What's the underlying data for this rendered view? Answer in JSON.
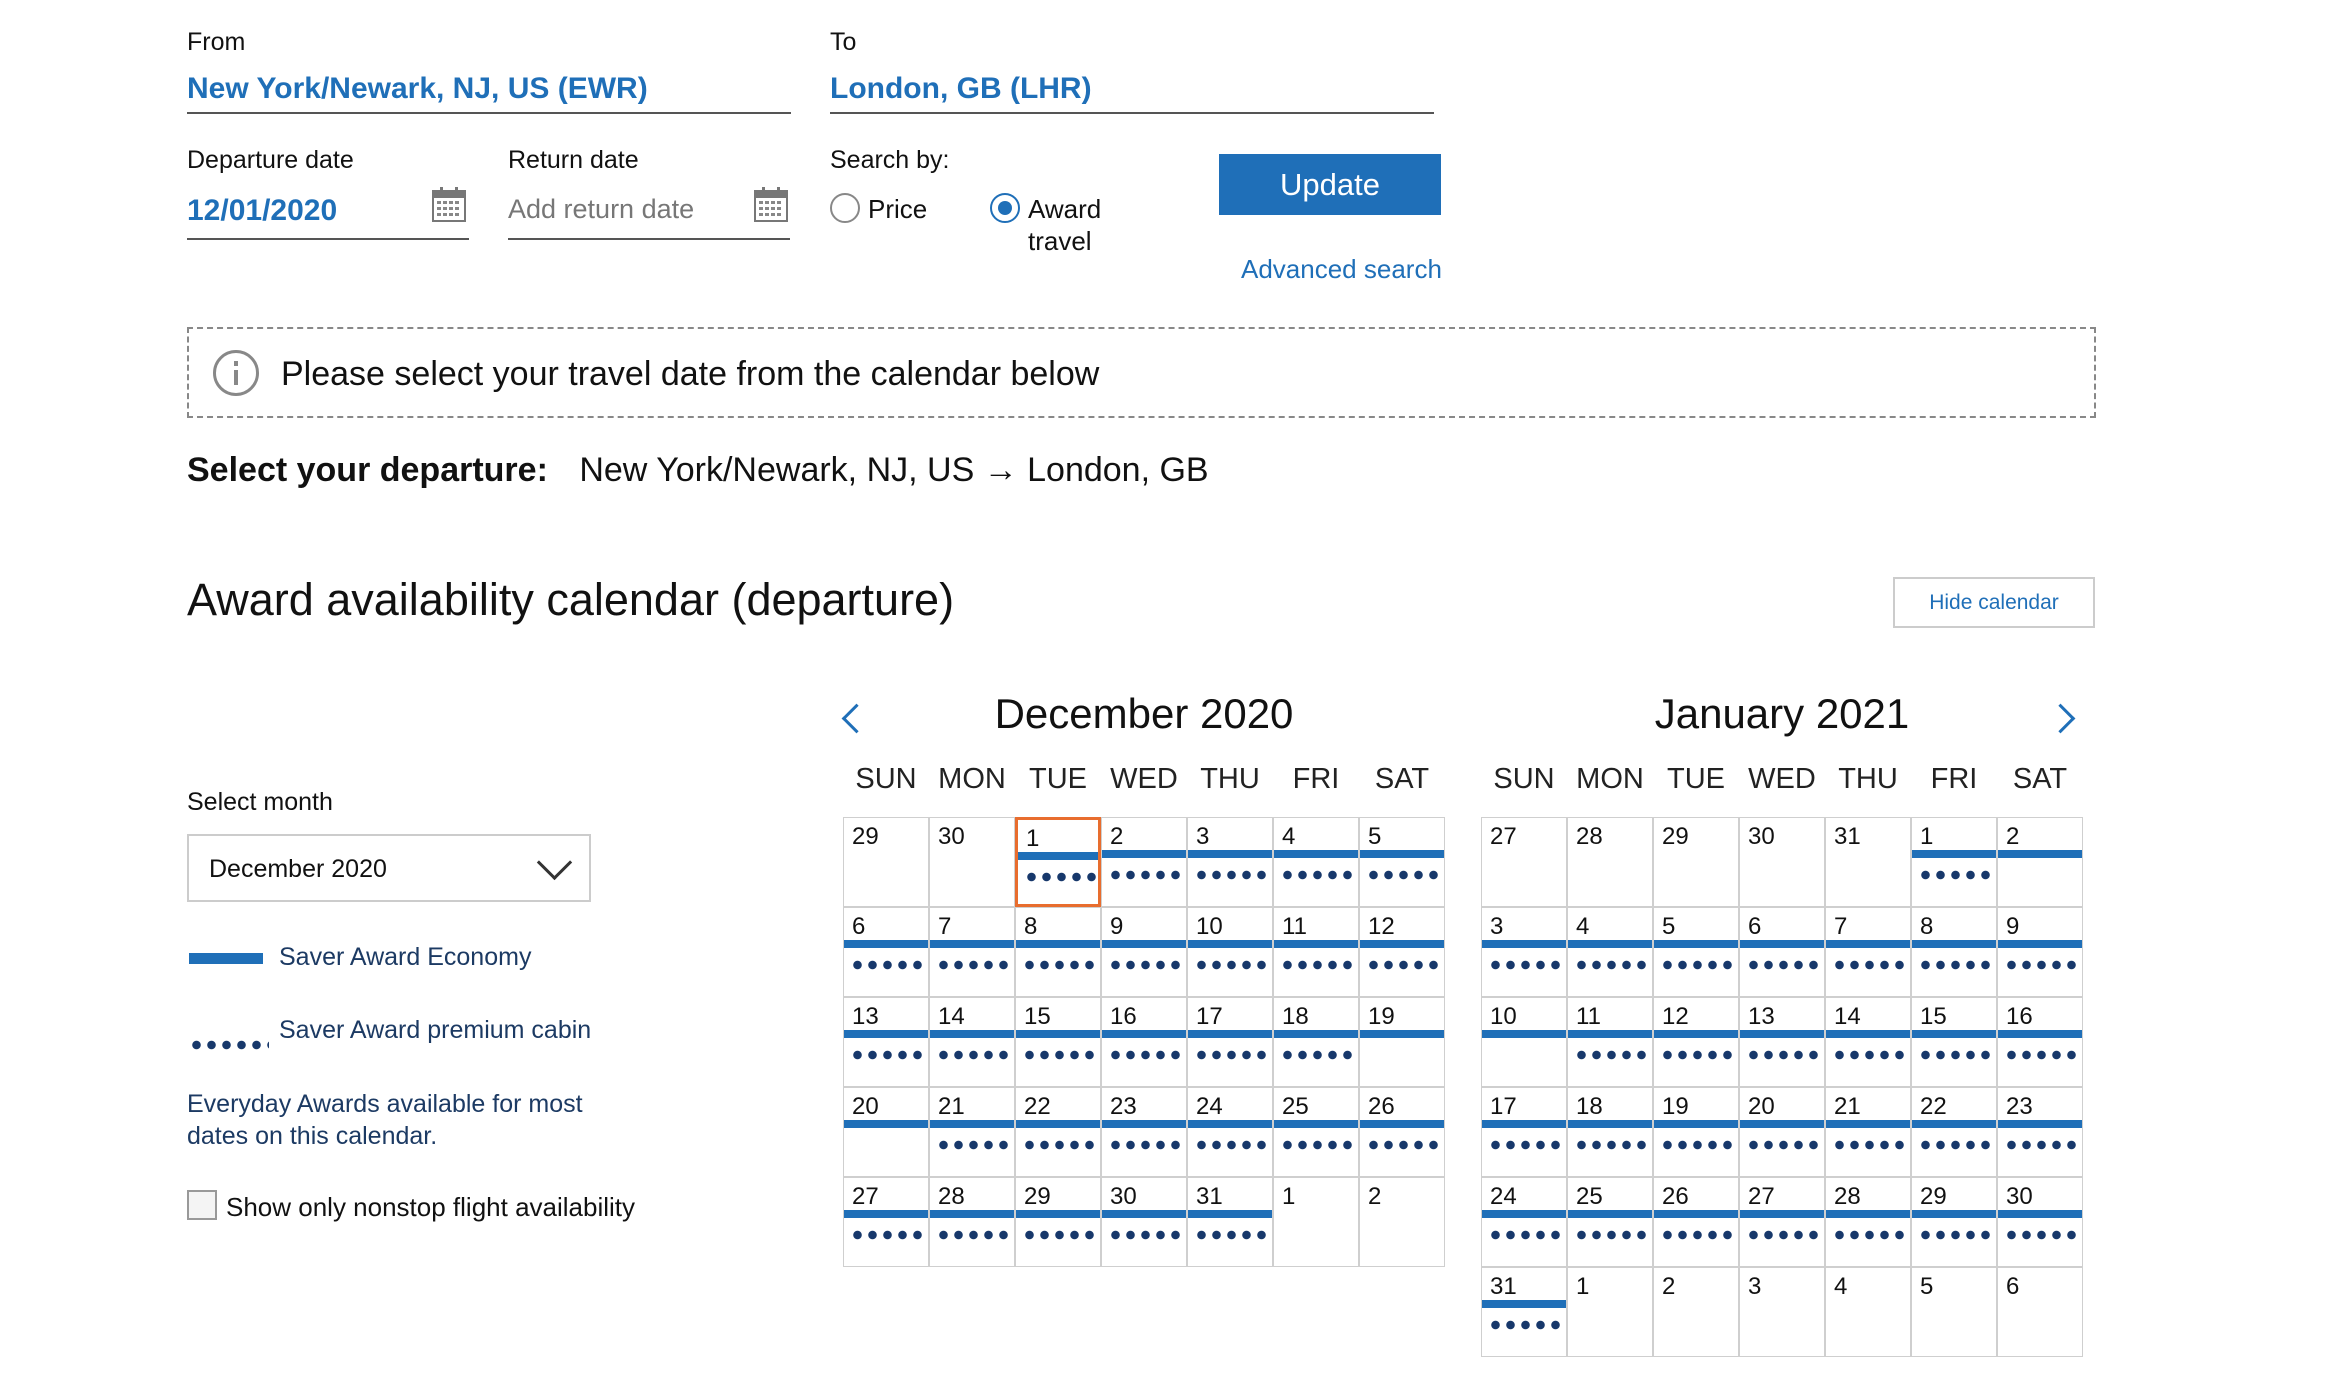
{
  "search": {
    "from_label": "From",
    "from_value": "New York/Newark, NJ, US (EWR)",
    "to_label": "To",
    "to_value": "London, GB (LHR)",
    "departure_label": "Departure date",
    "departure_value": "12/01/2020",
    "return_label": "Return date",
    "return_placeholder": "Add return date",
    "search_by_label": "Search by:",
    "option_price": "Price",
    "option_award_line1": "Award",
    "option_award_line2": "travel",
    "selected_option": "award",
    "update_label": "Update",
    "advanced_label": "Advanced search"
  },
  "notice": {
    "text": "Please select your travel date from the calendar below"
  },
  "select_departure": {
    "label": "Select your departure:",
    "route": "New York/Newark, NJ, US → London, GB"
  },
  "calendar_heading": "Award availability calendar (departure)",
  "hide_calendar_label": "Hide calendar",
  "sidebar": {
    "select_month_label": "Select month",
    "select_month_value": "December 2020",
    "legend_economy": "Saver Award Economy",
    "legend_premium": "Saver Award premium cabin",
    "everyday_note_line1": "Everyday Awards available for most",
    "everyday_note_line2": "dates on this calendar.",
    "nonstop_label": "Show only nonstop flight availability",
    "nonstop_checked": false
  },
  "weekdays": [
    "SUN",
    "MON",
    "TUE",
    "WED",
    "THU",
    "FRI",
    "SAT"
  ],
  "colors": {
    "accent": "#1f6fb8",
    "dots": "#17386b",
    "selected_border": "#e86d2e"
  },
  "months": [
    {
      "title": "December 2020",
      "weeks": [
        [
          {
            "d": "29",
            "bar": false,
            "dots": false
          },
          {
            "d": "30",
            "bar": false,
            "dots": false
          },
          {
            "d": "1",
            "bar": true,
            "dots": true,
            "selected": true
          },
          {
            "d": "2",
            "bar": true,
            "dots": true
          },
          {
            "d": "3",
            "bar": true,
            "dots": true
          },
          {
            "d": "4",
            "bar": true,
            "dots": true
          },
          {
            "d": "5",
            "bar": true,
            "dots": true
          }
        ],
        [
          {
            "d": "6",
            "bar": true,
            "dots": true
          },
          {
            "d": "7",
            "bar": true,
            "dots": true
          },
          {
            "d": "8",
            "bar": true,
            "dots": true
          },
          {
            "d": "9",
            "bar": true,
            "dots": true
          },
          {
            "d": "10",
            "bar": true,
            "dots": true
          },
          {
            "d": "11",
            "bar": true,
            "dots": true
          },
          {
            "d": "12",
            "bar": true,
            "dots": true
          }
        ],
        [
          {
            "d": "13",
            "bar": true,
            "dots": true
          },
          {
            "d": "14",
            "bar": true,
            "dots": true
          },
          {
            "d": "15",
            "bar": true,
            "dots": true
          },
          {
            "d": "16",
            "bar": true,
            "dots": true
          },
          {
            "d": "17",
            "bar": true,
            "dots": true
          },
          {
            "d": "18",
            "bar": true,
            "dots": true
          },
          {
            "d": "19",
            "bar": true,
            "dots": false
          }
        ],
        [
          {
            "d": "20",
            "bar": true,
            "dots": false
          },
          {
            "d": "21",
            "bar": true,
            "dots": true
          },
          {
            "d": "22",
            "bar": true,
            "dots": true
          },
          {
            "d": "23",
            "bar": true,
            "dots": true
          },
          {
            "d": "24",
            "bar": true,
            "dots": true
          },
          {
            "d": "25",
            "bar": true,
            "dots": true
          },
          {
            "d": "26",
            "bar": true,
            "dots": true
          }
        ],
        [
          {
            "d": "27",
            "bar": true,
            "dots": true
          },
          {
            "d": "28",
            "bar": true,
            "dots": true
          },
          {
            "d": "29",
            "bar": true,
            "dots": true
          },
          {
            "d": "30",
            "bar": true,
            "dots": true
          },
          {
            "d": "31",
            "bar": true,
            "dots": true
          },
          {
            "d": "1",
            "bar": false,
            "dots": false
          },
          {
            "d": "2",
            "bar": false,
            "dots": false
          }
        ]
      ]
    },
    {
      "title": "January 2021",
      "weeks": [
        [
          {
            "d": "27",
            "bar": false,
            "dots": false
          },
          {
            "d": "28",
            "bar": false,
            "dots": false
          },
          {
            "d": "29",
            "bar": false,
            "dots": false
          },
          {
            "d": "30",
            "bar": false,
            "dots": false
          },
          {
            "d": "31",
            "bar": false,
            "dots": false
          },
          {
            "d": "1",
            "bar": true,
            "dots": true
          },
          {
            "d": "2",
            "bar": true,
            "dots": false
          }
        ],
        [
          {
            "d": "3",
            "bar": true,
            "dots": true
          },
          {
            "d": "4",
            "bar": true,
            "dots": true
          },
          {
            "d": "5",
            "bar": true,
            "dots": true
          },
          {
            "d": "6",
            "bar": true,
            "dots": true
          },
          {
            "d": "7",
            "bar": true,
            "dots": true
          },
          {
            "d": "8",
            "bar": true,
            "dots": true
          },
          {
            "d": "9",
            "bar": true,
            "dots": true
          }
        ],
        [
          {
            "d": "10",
            "bar": true,
            "dots": false
          },
          {
            "d": "11",
            "bar": true,
            "dots": true
          },
          {
            "d": "12",
            "bar": true,
            "dots": true
          },
          {
            "d": "13",
            "bar": true,
            "dots": true
          },
          {
            "d": "14",
            "bar": true,
            "dots": true
          },
          {
            "d": "15",
            "bar": true,
            "dots": true
          },
          {
            "d": "16",
            "bar": true,
            "dots": true
          }
        ],
        [
          {
            "d": "17",
            "bar": true,
            "dots": true
          },
          {
            "d": "18",
            "bar": true,
            "dots": true
          },
          {
            "d": "19",
            "bar": true,
            "dots": true
          },
          {
            "d": "20",
            "bar": true,
            "dots": true
          },
          {
            "d": "21",
            "bar": true,
            "dots": true
          },
          {
            "d": "22",
            "bar": true,
            "dots": true
          },
          {
            "d": "23",
            "bar": true,
            "dots": true
          }
        ],
        [
          {
            "d": "24",
            "bar": true,
            "dots": true
          },
          {
            "d": "25",
            "bar": true,
            "dots": true
          },
          {
            "d": "26",
            "bar": true,
            "dots": true
          },
          {
            "d": "27",
            "bar": true,
            "dots": true
          },
          {
            "d": "28",
            "bar": true,
            "dots": true
          },
          {
            "d": "29",
            "bar": true,
            "dots": true
          },
          {
            "d": "30",
            "bar": true,
            "dots": true
          }
        ],
        [
          {
            "d": "31",
            "bar": true,
            "dots": true
          },
          {
            "d": "1",
            "bar": false,
            "dots": false
          },
          {
            "d": "2",
            "bar": false,
            "dots": false
          },
          {
            "d": "3",
            "bar": false,
            "dots": false
          },
          {
            "d": "4",
            "bar": false,
            "dots": false
          },
          {
            "d": "5",
            "bar": false,
            "dots": false
          },
          {
            "d": "6",
            "bar": false,
            "dots": false
          }
        ]
      ]
    }
  ]
}
